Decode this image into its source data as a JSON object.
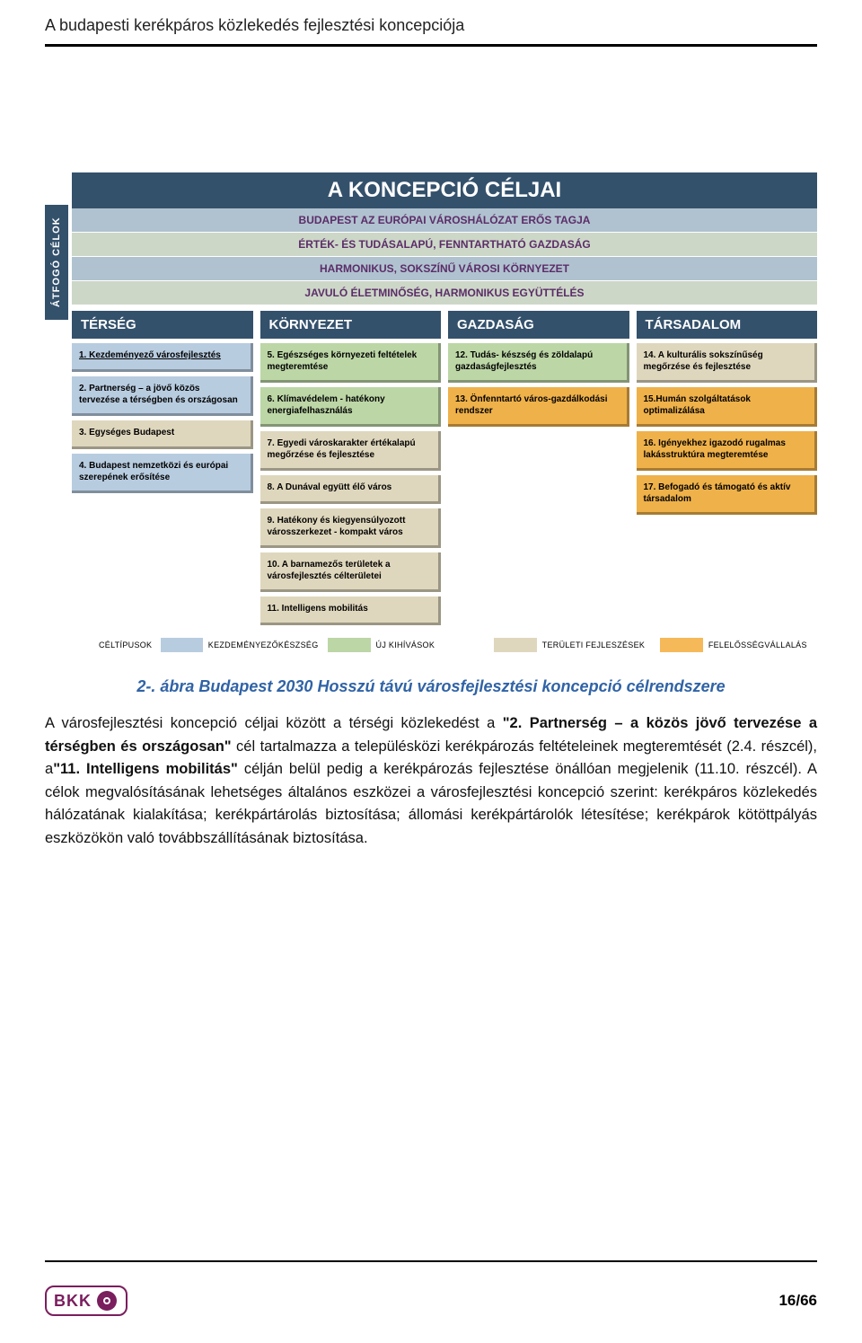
{
  "header": {
    "title": "A budapesti kerékpáros közlekedés fejlesztési koncepciója"
  },
  "colors": {
    "header_strip": "#34516c",
    "atfogo_bg_1": "#b0c2d0",
    "atfogo_bg_2": "#cdd7c8",
    "atfogo_text": "#3a3a3a",
    "legend_blue": "#b8cce0",
    "legend_green": "#bcd6a6",
    "legend_beige": "#dfd7bd",
    "legend_orange": "#f5b95a",
    "card_blue": "#b8cce0",
    "card_green": "#bcd6a6",
    "card_beige": "#dfd7bd",
    "card_orange": "#efb149"
  },
  "diagram": {
    "title": "A KONCEPCIÓ CÉLJAI",
    "sidebar_label": "ÁTFOGÓ CÉLOK",
    "atfogo_rows": [
      {
        "text": "BUDAPEST AZ EURÓPAI VÁROSHÁLÓZAT ERŐS TAGJA",
        "bg": "#b0c2d0",
        "fg": "#5b2d68"
      },
      {
        "text": "ÉRTÉK- ÉS TUDÁSALAPÚ, FENNTARTHATÓ GAZDASÁG",
        "bg": "#cdd7c8",
        "fg": "#5b2d68"
      },
      {
        "text": "HARMONIKUS, SOKSZÍNŰ VÁROSI KÖRNYEZET",
        "bg": "#b0c2d0",
        "fg": "#5b2d68"
      },
      {
        "text": "JAVULÓ ÉLETMINŐSÉG, HARMONIKUS EGYÜTTÉLÉS",
        "bg": "#cdd7c8",
        "fg": "#5b2d68"
      }
    ],
    "columns": [
      {
        "header": "TÉRSÉG",
        "cards": [
          {
            "text": "1. Kezdeményező városfejlesztés",
            "color": "card_blue",
            "underline": true
          },
          {
            "text": "2. Partnerség – a jövő közös tervezése a térségben és országosan",
            "color": "card_blue"
          },
          {
            "text": "3. Egységes Budapest",
            "color": "card_beige"
          },
          {
            "text": "4. Budapest nemzetközi és európai szerepének erősítése",
            "color": "card_blue"
          }
        ]
      },
      {
        "header": "KÖRNYEZET",
        "cards": [
          {
            "text": "5. Egészséges környezeti feltételek megteremtése",
            "color": "card_green"
          },
          {
            "text": "6. Klímavédelem - hatékony energiafelhasználás",
            "color": "card_green"
          },
          {
            "text": "7. Egyedi városkarakter értékalapú megőrzése és fejlesztése",
            "color": "card_beige"
          },
          {
            "text": "8. A Dunával együtt élő város",
            "color": "card_beige"
          },
          {
            "text": "9. Hatékony és kiegyensúlyozott városszerkezet - kompakt város",
            "color": "card_beige"
          },
          {
            "text": "10. A barnamezős területek a városfejlesztés célterületei",
            "color": "card_beige"
          },
          {
            "text": "11. Intelligens mobilitás",
            "color": "card_beige"
          }
        ]
      },
      {
        "header": "GAZDASÁG",
        "cards": [
          {
            "text": "12. Tudás- készség és zöldalapú gazdaságfejlesztés",
            "color": "card_green"
          },
          {
            "text": "13. Önfenntartó város-gazdálkodási rendszer",
            "color": "card_orange"
          }
        ]
      },
      {
        "header": "TÁRSADALOM",
        "cards": [
          {
            "text": "14. A kulturális sokszínűség megőrzése és fejlesztése",
            "color": "card_beige"
          },
          {
            "text": "15.Humán szolgáltatások optimalizálása",
            "color": "card_orange"
          },
          {
            "text": "16. Igényekhez igazodó rugalmas lakásstruktúra megteremtése",
            "color": "card_orange"
          },
          {
            "text": "17. Befogadó és támogató  és aktív társadalom",
            "color": "card_orange"
          }
        ]
      }
    ],
    "legend": {
      "type_label": "CÉLTÍPUSOK",
      "items": [
        {
          "color": "legend_blue",
          "label": "KEZDEMÉNYEZŐKÉSZSÉG"
        },
        {
          "color": "legend_green",
          "label": "ÚJ KIHÍVÁSOK"
        },
        {
          "color": "legend_beige",
          "label": "TERÜLETI FEJLESZÉSEK"
        },
        {
          "color": "legend_orange",
          "label": "FELELŐSSÉGVÁLLALÁS"
        }
      ]
    }
  },
  "caption": "2-. ábra Budapest 2030 Hosszú távú városfejlesztési koncepció célrendszere",
  "body": {
    "para": "A városfejlesztési koncepció céljai között a térségi közlekedést a \"2. Partnerség – a közös jövő tervezése a térségben és országosan\" cél tartalmazza a településközi kerékpározás feltételeinek megteremtését (2.4. részcél), a\"11. Intelligens mobilitás\" célján belül pedig a kerékpározás fejlesztése önállóan megjelenik (11.10. részcél). A célok megvalósításának lehetséges általános eszközei a városfejlesztési koncepció szerint: kerékpáros közlekedés hálózatának kialakítása; kerékpártárolás biztosítása; állomási kerékpártárolók létesítése; kerékpárok kötöttpályás eszközökön való továbbszállításának biztosítása.",
    "bold_spans": [
      "\"2. Partnerség – a közös jövő tervezése a térségben és országosan\"",
      "\"11. Intelligens mobilitás\""
    ]
  },
  "footer": {
    "logo_text": "BKK",
    "page": "16/66"
  }
}
